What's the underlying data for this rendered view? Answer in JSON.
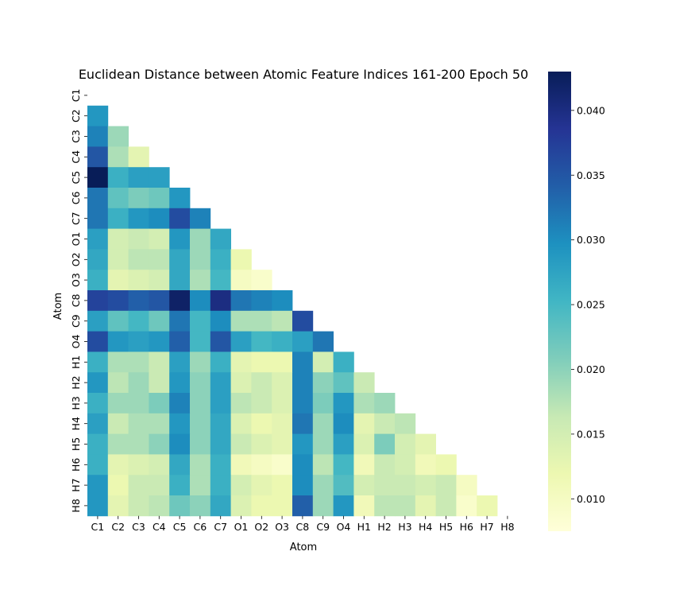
{
  "chart_data": {
    "type": "heatmap",
    "title": "Euclidean Distance between Atomic Feature Indices 161-200 Epoch 50",
    "xlabel": "Atom",
    "ylabel": "Atom",
    "labels": [
      "C1",
      "C2",
      "C3",
      "C4",
      "C5",
      "C6",
      "C7",
      "O1",
      "O2",
      "O3",
      "C8",
      "C9",
      "O4",
      "H1",
      "H2",
      "H3",
      "H4",
      "H5",
      "H6",
      "H7",
      "H8"
    ],
    "mask": "upper-triangle-including-diagonal",
    "colormap": "YlGnBu",
    "colormap_stops": [
      "#ffffd9",
      "#edf8b1",
      "#c7e9b4",
      "#7fcdbb",
      "#41b6c4",
      "#1d91c0",
      "#225ea8",
      "#253494",
      "#081d58"
    ],
    "vmin": 0.0075,
    "vmax": 0.043,
    "colorbar_ticks": [
      "0.010",
      "0.015",
      "0.020",
      "0.025",
      "0.030",
      "0.035",
      "0.040"
    ],
    "colorbar_tick_values": [
      0.01,
      0.015,
      0.02,
      0.025,
      0.03,
      0.035,
      0.04
    ],
    "lower_triangle_rows": [
      [],
      [
        0.029
      ],
      [
        0.031,
        0.019
      ],
      [
        0.035,
        0.018,
        0.013
      ],
      [
        0.043,
        0.026,
        0.028,
        0.028
      ],
      [
        0.032,
        0.023,
        0.021,
        0.022,
        0.029
      ],
      [
        0.032,
        0.026,
        0.029,
        0.03,
        0.036,
        0.031
      ],
      [
        0.028,
        0.015,
        0.016,
        0.015,
        0.029,
        0.019,
        0.027
      ],
      [
        0.027,
        0.015,
        0.017,
        0.017,
        0.027,
        0.019,
        0.026,
        0.012
      ],
      [
        0.026,
        0.013,
        0.014,
        0.015,
        0.027,
        0.018,
        0.025,
        0.01,
        0.009
      ],
      [
        0.037,
        0.036,
        0.034,
        0.035,
        0.042,
        0.03,
        0.04,
        0.032,
        0.031,
        0.03
      ],
      [
        0.028,
        0.023,
        0.025,
        0.022,
        0.032,
        0.025,
        0.03,
        0.018,
        0.018,
        0.017,
        0.036
      ],
      [
        0.036,
        0.029,
        0.028,
        0.029,
        0.034,
        0.025,
        0.035,
        0.028,
        0.025,
        0.026,
        0.028,
        0.032
      ],
      [
        0.026,
        0.018,
        0.018,
        0.016,
        0.028,
        0.019,
        0.026,
        0.013,
        0.012,
        0.012,
        0.031,
        0.015,
        0.026
      ],
      [
        0.029,
        0.017,
        0.019,
        0.016,
        0.029,
        0.02,
        0.028,
        0.014,
        0.016,
        0.014,
        0.031,
        0.02,
        0.023,
        0.016
      ],
      [
        0.026,
        0.019,
        0.019,
        0.021,
        0.031,
        0.02,
        0.028,
        0.017,
        0.016,
        0.014,
        0.031,
        0.021,
        0.029,
        0.018,
        0.019
      ],
      [
        0.028,
        0.016,
        0.018,
        0.018,
        0.029,
        0.02,
        0.027,
        0.014,
        0.012,
        0.013,
        0.032,
        0.019,
        0.03,
        0.013,
        0.016,
        0.017
      ],
      [
        0.026,
        0.018,
        0.018,
        0.02,
        0.03,
        0.02,
        0.027,
        0.016,
        0.014,
        0.013,
        0.029,
        0.019,
        0.028,
        0.014,
        0.021,
        0.015,
        0.013
      ],
      [
        0.026,
        0.013,
        0.014,
        0.015,
        0.027,
        0.018,
        0.026,
        0.011,
        0.01,
        0.009,
        0.03,
        0.017,
        0.025,
        0.011,
        0.016,
        0.015,
        0.011,
        0.012
      ],
      [
        0.029,
        0.012,
        0.016,
        0.016,
        0.026,
        0.018,
        0.026,
        0.015,
        0.013,
        0.012,
        0.03,
        0.019,
        0.024,
        0.015,
        0.016,
        0.016,
        0.015,
        0.016,
        0.01
      ],
      [
        0.029,
        0.013,
        0.016,
        0.017,
        0.022,
        0.02,
        0.027,
        0.014,
        0.012,
        0.012,
        0.034,
        0.019,
        0.029,
        0.011,
        0.017,
        0.017,
        0.013,
        0.016,
        0.009,
        0.012
      ]
    ]
  }
}
